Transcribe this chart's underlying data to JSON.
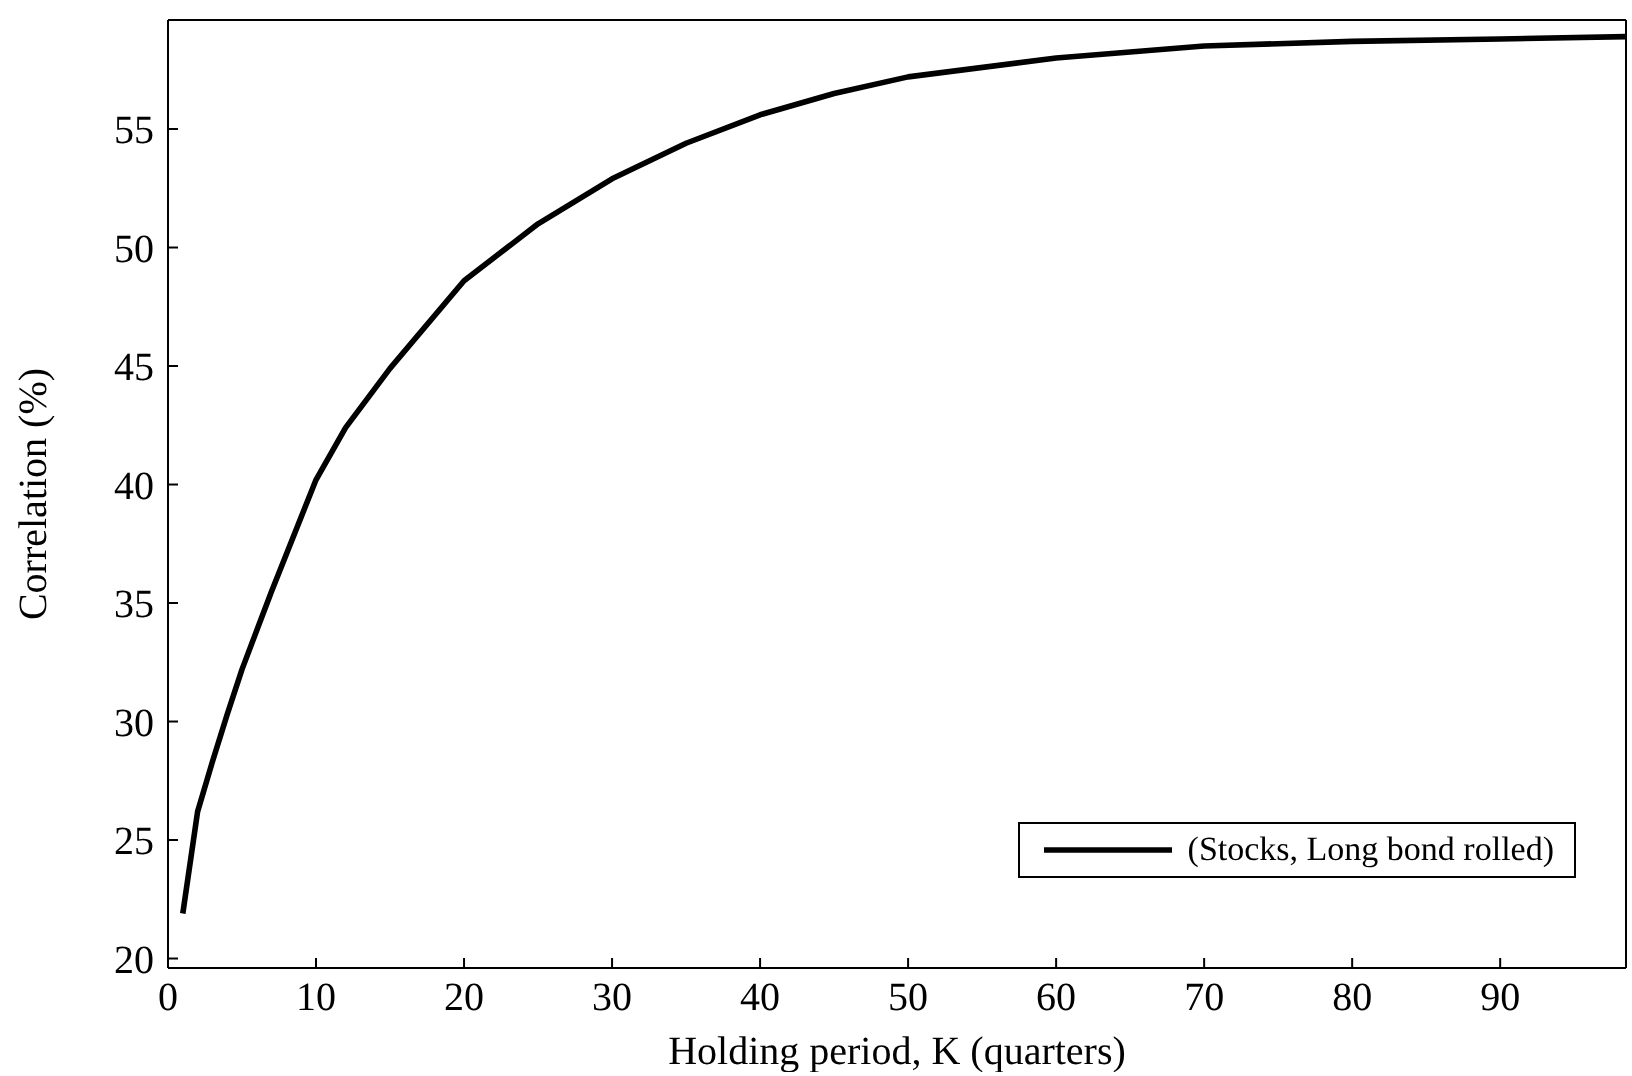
{
  "chart_data": {
    "type": "line",
    "xlabel": "Holding period, K (quarters)",
    "ylabel": "Correlation (%)",
    "xlim": [
      0,
      98.5
    ],
    "xticks": [
      0,
      10,
      20,
      30,
      40,
      50,
      60,
      70,
      80,
      90
    ],
    "ylim": [
      19.6,
      59.6
    ],
    "yticks": [
      20,
      25,
      30,
      35,
      40,
      45,
      50,
      55
    ],
    "legend": "bottom right",
    "grid": false,
    "marker": "none",
    "line_style": "solid",
    "series": [
      {
        "name": "(Stocks, Long bond rolled)",
        "color": "#000000",
        "x": [
          1,
          2,
          3,
          4,
          5,
          7,
          10,
          12,
          15,
          20,
          25,
          30,
          35,
          40,
          45,
          50,
          60,
          70,
          80,
          90,
          98.5
        ],
        "values": [
          21.9,
          26.2,
          28.3,
          30.3,
          32.2,
          35.5,
          40.2,
          42.4,
          44.9,
          48.6,
          51.0,
          52.9,
          54.4,
          55.6,
          56.5,
          57.2,
          58.0,
          58.5,
          58.7,
          58.8,
          58.9
        ]
      }
    ]
  }
}
